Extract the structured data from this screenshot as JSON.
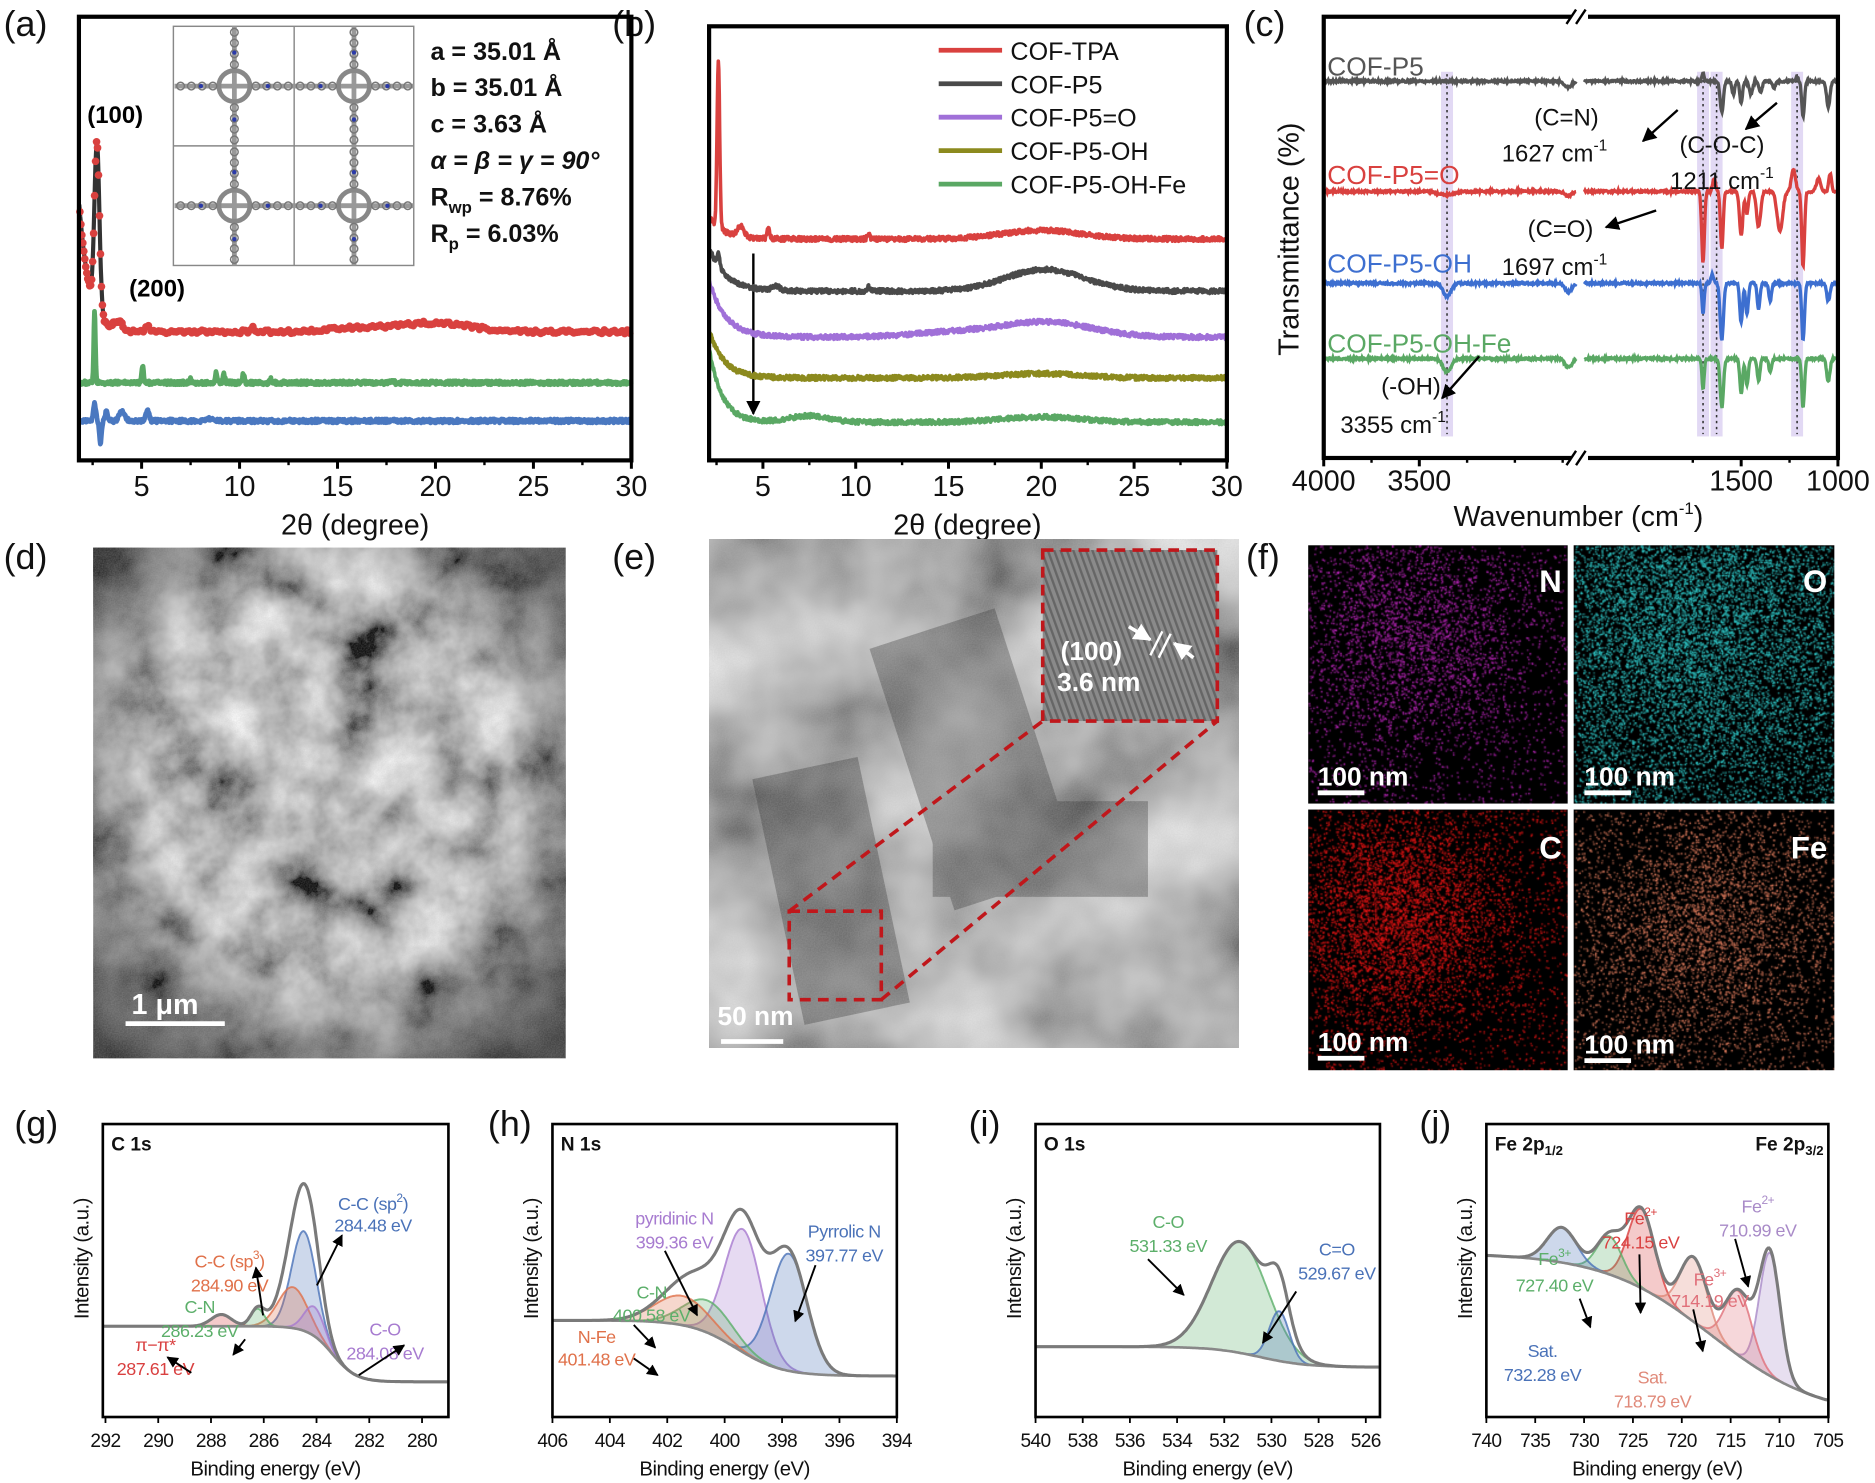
{
  "panel_labels": {
    "a": "(a)",
    "b": "(b)",
    "c": "(c)",
    "d": "(d)",
    "e": "(e)",
    "f": "(f)",
    "g": "(g)",
    "h": "(h)",
    "i": "(i)",
    "j": "(j)"
  },
  "chart_data": [
    {
      "id": "a",
      "type": "line",
      "xlabel": "2θ (degree)",
      "ylabel": "",
      "xlim": [
        1.8,
        30
      ],
      "ylim": [
        0,
        100
      ],
      "xticks": [
        5,
        10,
        15,
        20,
        25,
        30
      ],
      "grid": false,
      "annotations": {
        "peak_100": "(100)",
        "peak_200": "(200)"
      },
      "lattice": [
        {
          "main": "a = 35.01 Å",
          "sub": "",
          "rest": ""
        },
        {
          "main": "b = 35.01 Å",
          "sub": "",
          "rest": ""
        },
        {
          "main": "c = 3.63 Å",
          "sub": "",
          "rest": ""
        },
        {
          "main": "α = β = γ = 90°",
          "sub": "",
          "rest": ""
        },
        {
          "main": "R",
          "sub": "wp",
          "rest": " = 8.76%"
        },
        {
          "main": "R",
          "sub": "p",
          "rest": " = 6.03%"
        }
      ],
      "series": [
        {
          "style": "dots+fit",
          "color": "#d9413f",
          "fit_color": "#333333",
          "baseline": 29,
          "decay": [
            20,
            2.0,
            0.5
          ],
          "peaks": [
            [
              2.72,
              38,
              0.18
            ],
            [
              3.8,
              2,
              0.3
            ],
            [
              5.3,
              1.5,
              0.15
            ],
            [
              10.7,
              1,
              0.12
            ],
            [
              16,
              0.8,
              2
            ],
            [
              20,
              2,
              2.5
            ]
          ]
        },
        {
          "style": "line",
          "color": "#5aa864",
          "baseline": 17.5,
          "decay": [
            0,
            2,
            1
          ],
          "peaks": [
            [
              2.6,
              16,
              0.06
            ],
            [
              5.05,
              4,
              0.07
            ],
            [
              7.5,
              1,
              0.07
            ],
            [
              8.8,
              2.5,
              0.07
            ],
            [
              9.2,
              2,
              0.07
            ],
            [
              10.2,
              2,
              0.07
            ],
            [
              11.6,
              0.8,
              0.07
            ],
            [
              17.8,
              0.3,
              0.1
            ]
          ]
        },
        {
          "style": "line",
          "color": "#4a78c0",
          "baseline": 8.9,
          "decay": [
            0,
            2,
            1
          ],
          "peaks": [
            [
              2.6,
              4,
              0.1
            ],
            [
              2.9,
              -5,
              0.08
            ],
            [
              3.2,
              2,
              0.1
            ],
            [
              4.0,
              2.2,
              0.2
            ],
            [
              5.3,
              2.3,
              0.12
            ],
            [
              8.5,
              0.4,
              0.3
            ]
          ]
        }
      ]
    },
    {
      "id": "b",
      "type": "line",
      "xlabel": "2θ (degree)",
      "ylabel": "",
      "xlim": [
        2.1,
        30
      ],
      "ylim": [
        0,
        100
      ],
      "xticks": [
        5,
        10,
        15,
        20,
        25,
        30
      ],
      "grid": false,
      "legend_position": "top-right",
      "series": [
        {
          "name": "COF-TPA",
          "color": "#d9413f",
          "baseline": 51,
          "decay": [
            5,
            2.1,
            0.8
          ],
          "peaks": [
            [
              2.6,
              38,
              0.1
            ],
            [
              3.8,
              2.5,
              0.25
            ],
            [
              5.3,
              2.5,
              0.1
            ],
            [
              10.7,
              1.2,
              0.1
            ],
            [
              20,
              2,
              3
            ]
          ]
        },
        {
          "name": "COF-P5",
          "color": "#4a4a4a",
          "baseline": 39,
          "decay": [
            10,
            2.1,
            0.9
          ],
          "peaks": [
            [
              2.6,
              3,
              0.1
            ],
            [
              5.7,
              1,
              0.3
            ],
            [
              10.7,
              1,
              0.1
            ],
            [
              20.2,
              5,
              3
            ]
          ]
        },
        {
          "name": "COF-P5=O",
          "color": "#a070d8",
          "baseline": 28.4,
          "decay": [
            13,
            2.1,
            0.9
          ],
          "peaks": [
            [
              15,
              1,
              3
            ],
            [
              20.2,
              3.5,
              3.5
            ]
          ]
        },
        {
          "name": "COF-P5-OH",
          "color": "#8c8a1e",
          "baseline": 19,
          "decay": [
            11,
            2.1,
            0.8
          ],
          "peaks": [
            [
              20,
              1,
              3
            ]
          ]
        },
        {
          "name": "COF-P5-OH-Fe",
          "color": "#5aa864",
          "baseline": 8.8,
          "decay": [
            17,
            2.1,
            0.7
          ],
          "peaks": [
            [
              7.5,
              1.5,
              1.5
            ],
            [
              20,
              1.2,
              3
            ]
          ]
        }
      ]
    },
    {
      "id": "c",
      "type": "line",
      "xlabel": {
        "text": "Wavenumber (cm",
        "sup": "-1",
        "end": ")"
      },
      "ylabel": "Transmittance (%)",
      "x_segments": [
        [
          4000,
          2680
        ],
        [
          2310,
          1000
        ]
      ],
      "axis_break": true,
      "ylim": [
        0,
        100
      ],
      "xticks": [
        4000,
        3500,
        1500,
        1000
      ],
      "grid": false,
      "highlight_bands": [
        3355,
        1697,
        1627,
        1211
      ],
      "series": [
        {
          "name": "COF-P5",
          "color": "#555555",
          "offset": 85.4,
          "dips": [
            [
              2720,
              1.5,
              25
            ],
            [
              1697,
              -2,
              8
            ],
            [
              1600,
              7,
              12
            ],
            [
              1540,
              3,
              10
            ],
            [
              1500,
              5,
              10
            ],
            [
              1450,
              3,
              12
            ],
            [
              1400,
              2.5,
              12
            ],
            [
              1330,
              1.5,
              10
            ],
            [
              1211,
              -1,
              8
            ],
            [
              1180,
              8,
              10
            ],
            [
              1050,
              6,
              12
            ]
          ]
        },
        {
          "name": "COF-P5=O",
          "color": "#d9413f",
          "offset": 60.4,
          "dips": [
            [
              3360,
              0.8,
              60
            ],
            [
              2720,
              1,
              25
            ],
            [
              1697,
              16,
              10
            ],
            [
              1640,
              -3,
              10
            ],
            [
              1600,
              13,
              10
            ],
            [
              1500,
              10,
              12
            ],
            [
              1470,
              5,
              10
            ],
            [
              1410,
              8,
              15
            ],
            [
              1300,
              9,
              20
            ],
            [
              1230,
              -5,
              15
            ],
            [
              1180,
              17,
              10
            ],
            [
              1100,
              -3,
              15
            ],
            [
              1040,
              -4,
              10
            ]
          ]
        },
        {
          "name": "COF-P5-OH",
          "color": "#3d6fd0",
          "offset": 39.6,
          "dips": [
            [
              3355,
              3,
              30
            ],
            [
              2720,
              2,
              25
            ],
            [
              2500,
              1.5,
              40
            ],
            [
              1697,
              7,
              8
            ],
            [
              1650,
              -2,
              10
            ],
            [
              1600,
              13,
              12
            ],
            [
              1500,
              9,
              10
            ],
            [
              1470,
              7,
              10
            ],
            [
              1410,
              6,
              10
            ],
            [
              1350,
              4,
              10
            ],
            [
              1180,
              13,
              10
            ],
            [
              1050,
              4,
              12
            ]
          ]
        },
        {
          "name": "COF-P5-OH-Fe",
          "color": "#5aa864",
          "offset": 22.5,
          "dips": [
            [
              3355,
              3,
              30
            ],
            [
              2720,
              2,
              25
            ],
            [
              2500,
              1.5,
              40
            ],
            [
              1697,
              7,
              8
            ],
            [
              1600,
              11,
              12
            ],
            [
              1500,
              8,
              10
            ],
            [
              1470,
              6,
              10
            ],
            [
              1410,
              5,
              10
            ],
            [
              1350,
              3,
              10
            ],
            [
              1180,
              11,
              10
            ],
            [
              1050,
              5,
              12
            ]
          ]
        }
      ],
      "annotations": [
        {
          "name": "(C=N)",
          "value": "1627 cm",
          "sup": "-1"
        },
        {
          "name": "(C-O-C)",
          "value": "1211 cm",
          "sup": "-1"
        },
        {
          "name": "(C=O)",
          "value": "1697 cm",
          "sup": "-1"
        },
        {
          "name": "(-OH)",
          "value": "3355 cm",
          "sup": "-1"
        }
      ]
    },
    {
      "id": "g",
      "type": "area",
      "title": "C 1s",
      "title_sub": "",
      "xlabel": "Binding energy (eV)",
      "ylabel": "Intensity (a.u.)",
      "xlim": [
        292.1,
        279
      ],
      "ylim": [
        0,
        100
      ],
      "xticks": [
        292,
        290,
        288,
        286,
        284,
        282,
        280
      ],
      "background": {
        "left": 31,
        "right": 12,
        "center": 283.4,
        "width": 0.45
      },
      "components": [
        {
          "name": "C-C (sp",
          "sup": "2",
          "name_end": ")",
          "value": "284.48 eV",
          "center": 284.48,
          "height": 34,
          "fwhm": 1.1,
          "color": "#4a72b8"
        },
        {
          "name": "C-C (sp",
          "sup": "3",
          "name_end": ")",
          "value": "284.90 eV",
          "center": 284.9,
          "height": 14,
          "fwhm": 1.3,
          "color": "#e0714a"
        },
        {
          "name": "C-N",
          "sup": "",
          "name_end": "",
          "value": "286.23 eV",
          "center": 286.23,
          "height": 6,
          "fwhm": 0.6,
          "color": "#5caf6a"
        },
        {
          "name": "π−π*",
          "sup": "",
          "name_end": "",
          "value": "287.61 eV",
          "center": 287.61,
          "height": 4,
          "fwhm": 0.9,
          "color": "#d94040"
        },
        {
          "name": "C-O",
          "sup": "",
          "name_end": "",
          "value": "284.08 eV",
          "center": 284.08,
          "height": 10,
          "fwhm": 0.9,
          "color": "#a77bd0"
        }
      ]
    },
    {
      "id": "h",
      "type": "area",
      "title": "N 1s",
      "title_sub": "",
      "xlabel": "Binding energy (eV)",
      "ylabel": "Intensity (a.u.)",
      "xlim": [
        406,
        394
      ],
      "ylim": [
        0,
        100
      ],
      "xticks": [
        406,
        404,
        402,
        400,
        398,
        396,
        394
      ],
      "background": {
        "left": 33,
        "right": 14,
        "center": 399.6,
        "width": 0.8
      },
      "components": [
        {
          "name": "pyridinic N",
          "sup": "",
          "name_end": "",
          "value": "399.36 eV",
          "center": 399.36,
          "height": 42,
          "fwhm": 1.5,
          "color": "#a77bd0"
        },
        {
          "name": "Pyrrolic N",
          "sup": "",
          "name_end": "",
          "value": "397.77 eV",
          "center": 397.77,
          "height": 40,
          "fwhm": 1.5,
          "color": "#4a72b8"
        },
        {
          "name": "C-N",
          "sup": "",
          "name_end": "",
          "value": "400.58 eV",
          "center": 400.58,
          "height": 11,
          "fwhm": 2.0,
          "color": "#5caf6a"
        },
        {
          "name": "N-Fe",
          "sup": "",
          "name_end": "",
          "value": "401.48 eV",
          "center": 401.48,
          "height": 10,
          "fwhm": 2.2,
          "color": "#e0714a"
        }
      ]
    },
    {
      "id": "i",
      "type": "area",
      "title": "O 1s",
      "title_sub": "",
      "xlabel": "Binding energy (eV)",
      "ylabel": "Intensity (a.u.)",
      "xlim": [
        540,
        525.4
      ],
      "ylim": [
        0,
        100
      ],
      "xticks": [
        540,
        538,
        536,
        534,
        532,
        530,
        528,
        526
      ],
      "background": {
        "left": 24,
        "right": 17,
        "center": 530.5,
        "width": 1
      },
      "components": [
        {
          "name": "C-O",
          "sup": "",
          "name_end": "",
          "value": "531.33 eV",
          "center": 531.33,
          "height": 38,
          "fwhm": 2.8,
          "color": "#5caf6a"
        },
        {
          "name": "C=O",
          "sup": "",
          "name_end": "",
          "value": "529.67 eV",
          "center": 529.67,
          "height": 17,
          "fwhm": 1.0,
          "color": "#4a72b8"
        }
      ]
    },
    {
      "id": "j",
      "type": "area",
      "title": "Fe 2p",
      "title_sub": "1/2",
      "title_right": "Fe 2p",
      "title_right_sub": "3/2",
      "xlabel": "Binding energy (eV)",
      "ylabel": "Intensity (a.u.)",
      "xlim": [
        740,
        705
      ],
      "ylim": [
        0,
        100
      ],
      "xticks": [
        740,
        735,
        730,
        725,
        720,
        715,
        710,
        705
      ],
      "background": {
        "left": 56,
        "right": 0,
        "center": 717,
        "width": 5.5
      },
      "components": [
        {
          "name": "Fe",
          "sup": "2+",
          "name_end": "",
          "value": "710.99 eV",
          "center": 710.99,
          "height": 42,
          "fwhm": 2.5,
          "color": "#a98bc8"
        },
        {
          "name": "Fe",
          "sup": "2+",
          "name_end": "",
          "value": "724.15 eV",
          "center": 724.15,
          "height": 27,
          "fwhm": 3.2,
          "color": "#d94040"
        },
        {
          "name": "Fe",
          "sup": "3+",
          "name_end": "",
          "value": "727.40 eV",
          "center": 727.4,
          "height": 13,
          "fwhm": 3.0,
          "color": "#5caf6a"
        },
        {
          "name": "Fe",
          "sup": "3+",
          "name_end": "",
          "value": "714.19 eV",
          "center": 714.19,
          "height": 22,
          "fwhm": 3.2,
          "color": "#e0707a"
        },
        {
          "name": "Sat.",
          "sup": "",
          "name_end": "",
          "value": "732.28 eV",
          "center": 732.28,
          "height": 12,
          "fwhm": 3.5,
          "color": "#4a72b8"
        },
        {
          "name": "Sat.",
          "sup": "",
          "name_end": "",
          "value": "718.79 eV",
          "center": 718.79,
          "height": 22,
          "fwhm": 3.2,
          "color": "#e08a7a"
        }
      ]
    }
  ],
  "images": {
    "sem": {
      "scale_bar": "1 μm"
    },
    "tem": {
      "scale_bar": "50 nm",
      "inset_plane": "(100)",
      "inset_spacing": "3.6 nm"
    },
    "eds": [
      {
        "element": "N",
        "scale_bar": "100 nm",
        "color": "#b424b4"
      },
      {
        "element": "O",
        "scale_bar": "100 nm",
        "color": "#2ec4c4"
      },
      {
        "element": "C",
        "scale_bar": "100 nm",
        "color": "#e41414"
      },
      {
        "element": "Fe",
        "scale_bar": "100 nm",
        "color": "#d8785a"
      }
    ]
  }
}
